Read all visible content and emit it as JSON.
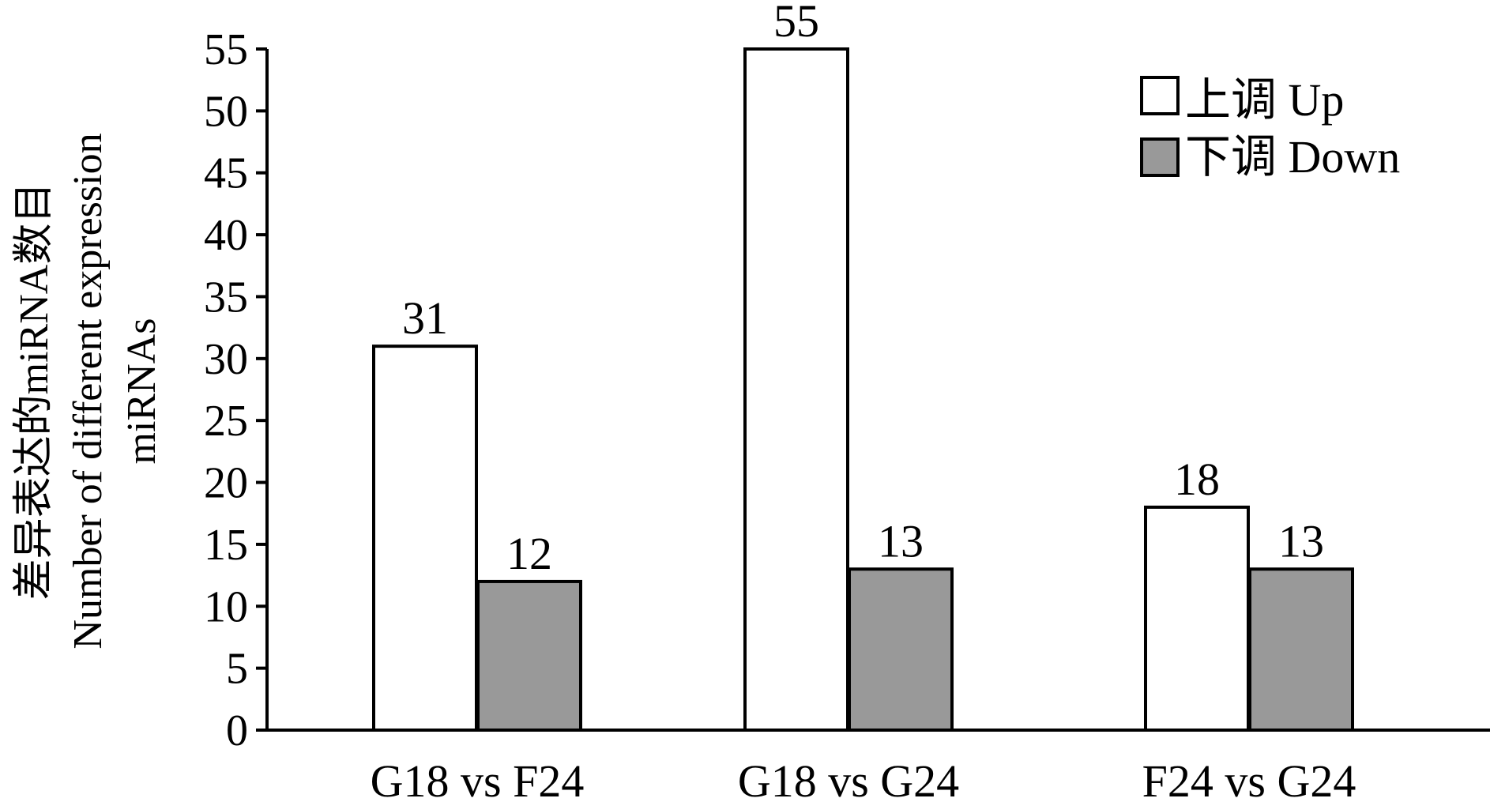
{
  "chart_data": {
    "type": "bar",
    "title": "",
    "xlabel": "",
    "ylabel_lines": [
      "差异表达的miRNA数目",
      "Number of different expression",
      "miRNAs"
    ],
    "categories": [
      "G18 vs F24",
      "G18 vs G24",
      "F24 vs G24"
    ],
    "series": [
      {
        "name": "上调 Up",
        "values": [
          31,
          55,
          18
        ],
        "color": "#ffffff"
      },
      {
        "name": "下调 Down",
        "values": [
          12,
          13,
          13
        ],
        "color": "#999999"
      }
    ],
    "ylim": [
      0,
      55
    ],
    "yticks": [
      0,
      5,
      10,
      15,
      20,
      25,
      30,
      35,
      40,
      45,
      50,
      55
    ],
    "grid": false,
    "legend_position": "top-right",
    "data_labels": true
  }
}
